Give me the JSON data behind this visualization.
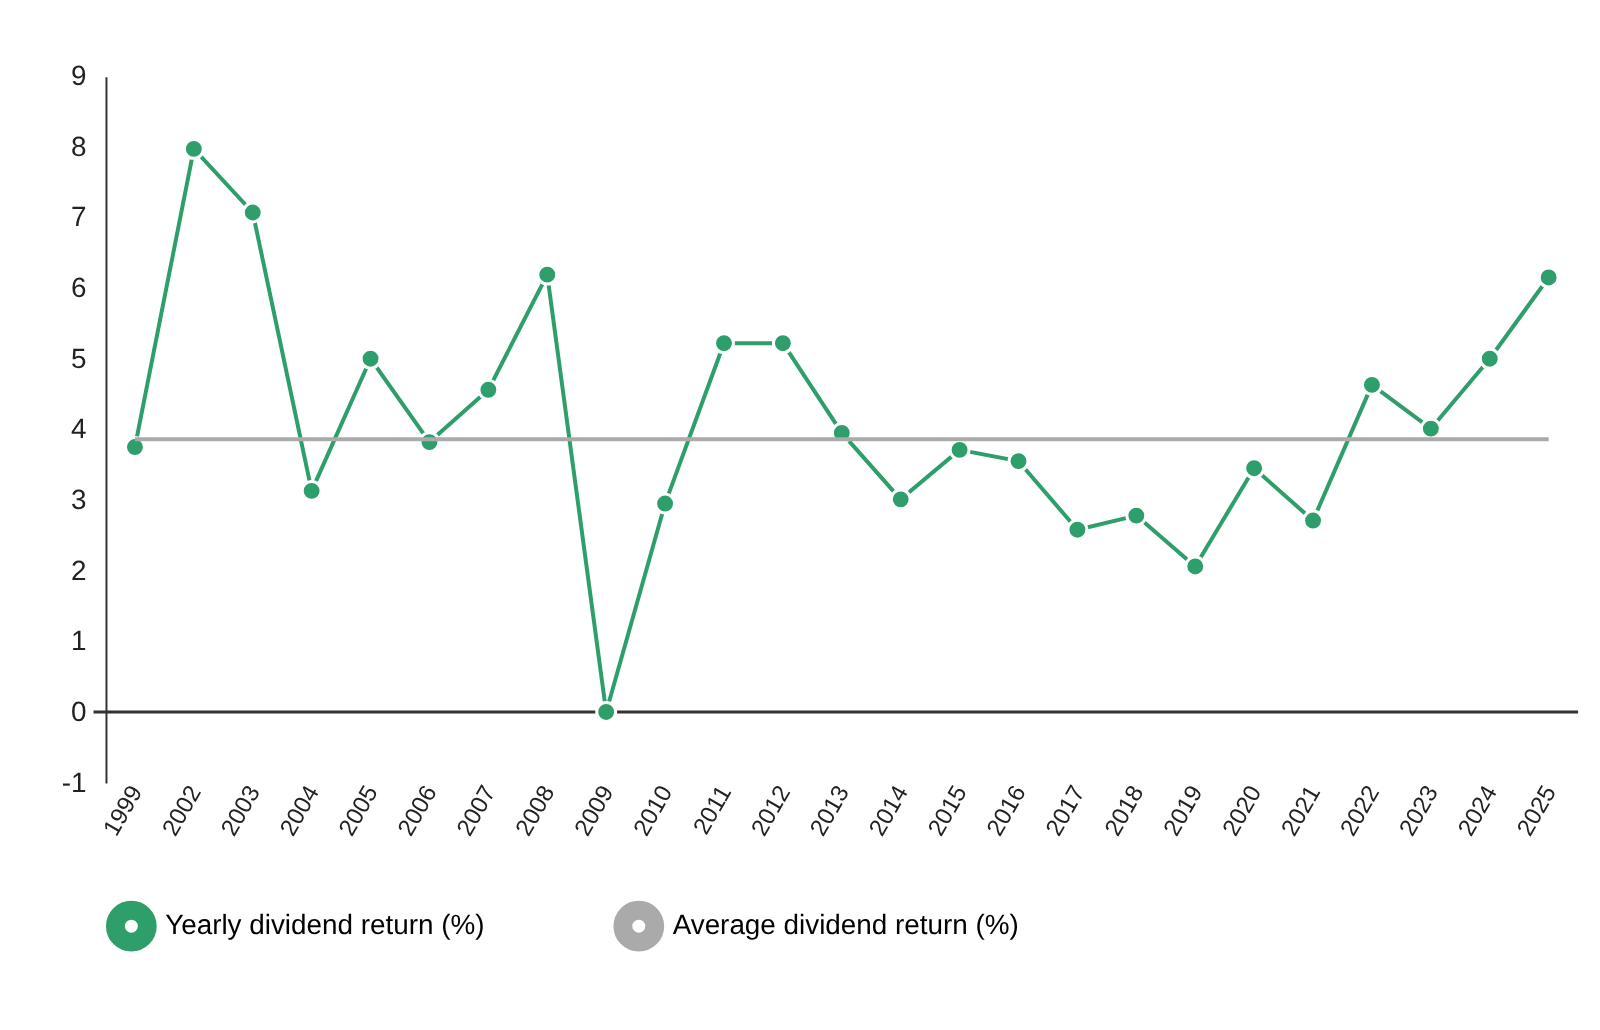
{
  "chart_data": {
    "type": "line",
    "categories": [
      "1999",
      "2002",
      "2003",
      "2004",
      "2005",
      "2006",
      "2007",
      "2008",
      "2009",
      "2010",
      "2011",
      "2012",
      "2013",
      "2014",
      "2015",
      "2016",
      "2017",
      "2018",
      "2019",
      "2020",
      "2021",
      "2022",
      "2023",
      "2024",
      "2025"
    ],
    "series": [
      {
        "name": "Yearly dividend return (%)",
        "color": "#2e9e6b",
        "marker": "circle",
        "values": [
          3.75,
          7.97,
          7.07,
          3.13,
          5.0,
          3.82,
          4.56,
          6.19,
          0,
          2.95,
          5.22,
          5.22,
          3.95,
          3.01,
          3.71,
          3.55,
          2.58,
          2.78,
          2.06,
          3.45,
          2.71,
          4.63,
          4.01,
          5.0,
          6.15
        ]
      },
      {
        "name": "Average dividend return (%)",
        "color": "#aaaaaa",
        "marker": "none",
        "values": [
          3.86,
          3.86,
          3.86,
          3.86,
          3.86,
          3.86,
          3.86,
          3.86,
          3.86,
          3.86,
          3.86,
          3.86,
          3.86,
          3.86,
          3.86,
          3.86,
          3.86,
          3.86,
          3.86,
          3.86,
          3.86,
          3.86,
          3.86,
          3.86,
          3.86
        ]
      }
    ],
    "ylim": [
      -1,
      9
    ],
    "yticks": [
      -1,
      0,
      1,
      2,
      3,
      4,
      5,
      6,
      7,
      8,
      9
    ],
    "ref_lines": [
      {
        "axis": "y",
        "value": 0,
        "color": "#333333"
      }
    ],
    "grid": false,
    "legend": "bottom",
    "line_style": "solid"
  }
}
